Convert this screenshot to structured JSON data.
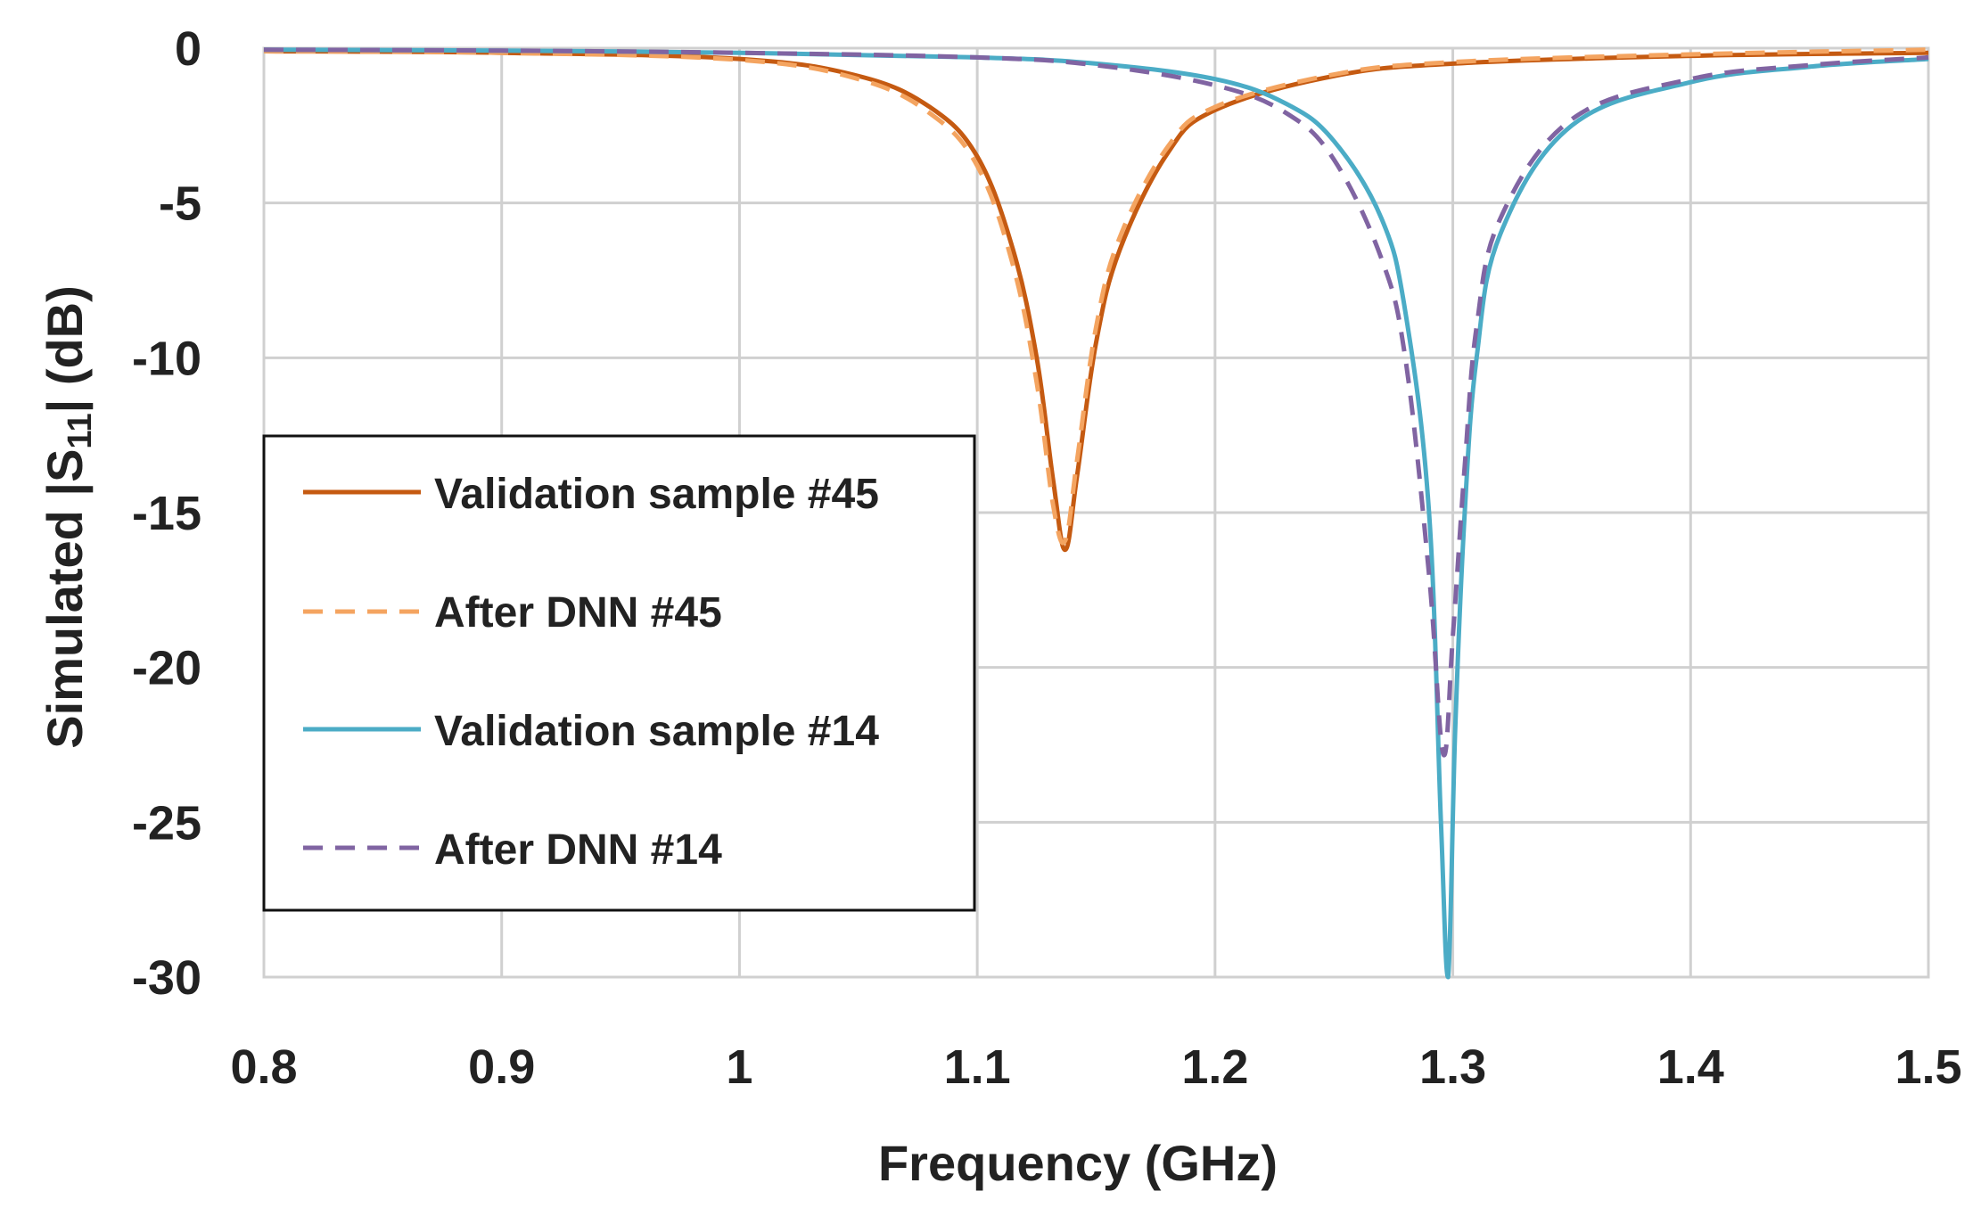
{
  "chart_data": {
    "type": "line",
    "title": "",
    "xlabel": "Frequency (GHz)",
    "ylabel_main": "Simulated |S",
    "ylabel_sub": "11",
    "ylabel_tail": "| (dB)",
    "xlim": [
      0.8,
      1.5
    ],
    "ylim": [
      -30,
      0
    ],
    "xticks": [
      0.8,
      0.9,
      1.0,
      1.1,
      1.2,
      1.3,
      1.4,
      1.5
    ],
    "xtick_labels": [
      "0.8",
      "0.9",
      "1",
      "1.1",
      "1.2",
      "1.3",
      "1.4",
      "1.5"
    ],
    "yticks": [
      0,
      -5,
      -10,
      -15,
      -20,
      -25,
      -30
    ],
    "ytick_labels": [
      "0",
      "-5",
      "-10",
      "-15",
      "-20",
      "-25",
      "-30"
    ],
    "grid": true,
    "legend_position": "left-middle",
    "series": [
      {
        "name": "Validation sample #45",
        "color": "#C55A11",
        "dash": "solid",
        "x": [
          0.8,
          0.9,
          1.0,
          1.05,
          1.08,
          1.1,
          1.115,
          1.125,
          1.132,
          1.137,
          1.142,
          1.15,
          1.16,
          1.18,
          1.2,
          1.25,
          1.3,
          1.4,
          1.5
        ],
        "y": [
          -0.1,
          -0.15,
          -0.35,
          -0.9,
          -1.9,
          -3.5,
          -6.5,
          -10.0,
          -14.0,
          -16.2,
          -13.8,
          -9.5,
          -6.5,
          -3.4,
          -2.0,
          -0.9,
          -0.5,
          -0.25,
          -0.15
        ]
      },
      {
        "name": "After DNN #45",
        "color": "#F4A460",
        "dash": "dashed",
        "x": [
          0.8,
          0.9,
          1.0,
          1.05,
          1.08,
          1.1,
          1.115,
          1.125,
          1.132,
          1.137,
          1.142,
          1.15,
          1.16,
          1.18,
          1.2,
          1.25,
          1.3,
          1.4,
          1.5
        ],
        "y": [
          -0.1,
          -0.15,
          -0.38,
          -1.0,
          -2.1,
          -3.8,
          -7.0,
          -10.8,
          -14.8,
          -15.9,
          -13.3,
          -9.0,
          -6.1,
          -3.2,
          -1.9,
          -0.85,
          -0.45,
          -0.2,
          -0.05
        ]
      },
      {
        "name": "Validation sample #14",
        "color": "#4BACC6",
        "dash": "solid",
        "x": [
          0.8,
          0.9,
          1.0,
          1.1,
          1.15,
          1.2,
          1.23,
          1.25,
          1.27,
          1.28,
          1.29,
          1.295,
          1.298,
          1.301,
          1.305,
          1.31,
          1.32,
          1.35,
          1.4,
          1.45,
          1.5
        ],
        "y": [
          -0.05,
          -0.08,
          -0.15,
          -0.3,
          -0.5,
          -1.0,
          -1.8,
          -3.0,
          -5.5,
          -8.5,
          -15.0,
          -25.0,
          -30.0,
          -22.0,
          -15.0,
          -10.0,
          -6.0,
          -2.5,
          -1.1,
          -0.6,
          -0.35
        ]
      },
      {
        "name": "After DNN #14",
        "color": "#8064A2",
        "dash": "dashed",
        "x": [
          0.8,
          0.9,
          1.0,
          1.1,
          1.15,
          1.2,
          1.23,
          1.25,
          1.27,
          1.28,
          1.29,
          1.296,
          1.3,
          1.305,
          1.31,
          1.32,
          1.35,
          1.4,
          1.45,
          1.5
        ],
        "y": [
          -0.05,
          -0.08,
          -0.15,
          -0.3,
          -0.55,
          -1.2,
          -2.1,
          -3.6,
          -6.8,
          -10.0,
          -17.0,
          -22.8,
          -19.0,
          -13.5,
          -9.0,
          -5.5,
          -2.3,
          -1.0,
          -0.55,
          -0.3
        ]
      }
    ]
  }
}
